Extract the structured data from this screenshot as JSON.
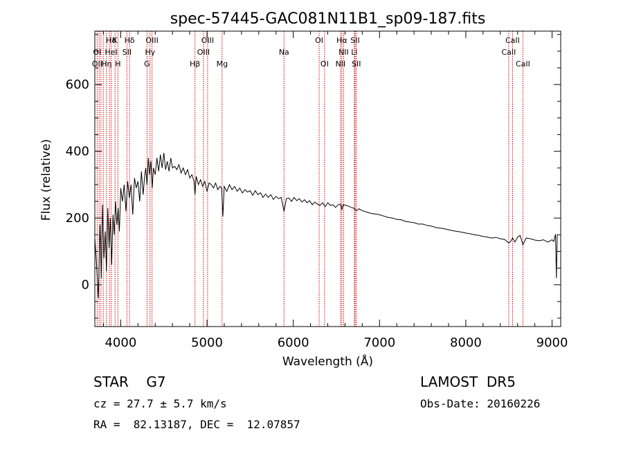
{
  "chart_data": {
    "type": "line",
    "title": "spec-57445-GAC081N11B1_sp09-187.fits",
    "xlabel": "Wavelength (Å)",
    "ylabel": "Flux (relative)",
    "xlim": [
      3700,
      9100
    ],
    "ylim": [
      -125,
      760
    ],
    "xticks": [
      4000,
      5000,
      6000,
      7000,
      8000,
      9000
    ],
    "yticks": [
      0,
      200,
      400,
      600
    ],
    "grid": false,
    "series": [
      {
        "color": "#000000",
        "x": [
          3700,
          3720,
          3740,
          3760,
          3775,
          3790,
          3805,
          3820,
          3835,
          3850,
          3865,
          3880,
          3895,
          3910,
          3925,
          3940,
          3955,
          3970,
          3985,
          4000,
          4020,
          4040,
          4060,
          4080,
          4100,
          4120,
          4140,
          4160,
          4180,
          4200,
          4220,
          4240,
          4260,
          4275,
          4290,
          4305,
          4320,
          4335,
          4350,
          4365,
          4380,
          4400,
          4420,
          4440,
          4460,
          4480,
          4500,
          4520,
          4540,
          4560,
          4580,
          4600,
          4625,
          4650,
          4675,
          4700,
          4725,
          4750,
          4775,
          4800,
          4825,
          4850,
          4861,
          4875,
          4900,
          4925,
          4950,
          4975,
          5000,
          5025,
          5050,
          5075,
          5100,
          5125,
          5150,
          5170,
          5184,
          5200,
          5230,
          5260,
          5290,
          5320,
          5350,
          5380,
          5410,
          5440,
          5470,
          5500,
          5530,
          5560,
          5590,
          5620,
          5650,
          5680,
          5710,
          5740,
          5770,
          5800,
          5830,
          5860,
          5893,
          5920,
          5950,
          5980,
          6010,
          6040,
          6070,
          6100,
          6130,
          6160,
          6190,
          6220,
          6250,
          6280,
          6310,
          6340,
          6370,
          6400,
          6430,
          6460,
          6490,
          6520,
          6550,
          6563,
          6580,
          6610,
          6640,
          6670,
          6700,
          6730,
          6760,
          6800,
          6850,
          6900,
          6950,
          7000,
          7050,
          7100,
          7150,
          7200,
          7250,
          7300,
          7350,
          7400,
          7450,
          7500,
          7550,
          7600,
          7650,
          7700,
          7750,
          7800,
          7850,
          7900,
          7950,
          8000,
          8050,
          8100,
          8150,
          8200,
          8250,
          8300,
          8350,
          8400,
          8450,
          8498,
          8520,
          8542,
          8570,
          8600,
          8630,
          8662,
          8700,
          8750,
          8800,
          8850,
          8900,
          8950,
          9000,
          9020,
          9040,
          9050,
          9060
        ],
        "values": [
          140,
          60,
          -40,
          180,
          20,
          240,
          80,
          160,
          40,
          230,
          110,
          200,
          60,
          210,
          150,
          250,
          180,
          230,
          160,
          290,
          250,
          300,
          220,
          310,
          260,
          300,
          210,
          320,
          290,
          310,
          250,
          340,
          270,
          320,
          350,
          300,
          380,
          330,
          370,
          290,
          350,
          330,
          380,
          340,
          390,
          350,
          395,
          345,
          370,
          340,
          380,
          350,
          355,
          345,
          360,
          335,
          350,
          330,
          345,
          320,
          330,
          310,
          270,
          325,
          300,
          315,
          295,
          310,
          280,
          305,
          300,
          290,
          305,
          285,
          295,
          290,
          205,
          295,
          280,
          300,
          285,
          295,
          280,
          290,
          275,
          285,
          278,
          282,
          268,
          282,
          270,
          276,
          262,
          272,
          262,
          270,
          256,
          265,
          258,
          262,
          220,
          258,
          260,
          250,
          262,
          252,
          258,
          248,
          255,
          246,
          252,
          240,
          248,
          242,
          238,
          246,
          234,
          246,
          238,
          240,
          232,
          240,
          242,
          225,
          240,
          238,
          236,
          232,
          230,
          222,
          228,
          222,
          218,
          214,
          212,
          210,
          206,
          202,
          200,
          196,
          195,
          190,
          188,
          186,
          182,
          182,
          178,
          176,
          172,
          170,
          168,
          165,
          162,
          160,
          158,
          155,
          153,
          150,
          148,
          145,
          143,
          140,
          142,
          138,
          136,
          125,
          130,
          140,
          128,
          143,
          148,
          120,
          140,
          138,
          134,
          132,
          135,
          128,
          135,
          130,
          152,
          20,
          150
        ]
      }
    ],
    "line_labels": [
      {
        "text": "Hδ",
        "wl": 3889,
        "row": 0
      },
      {
        "text": "K",
        "wl": 3934,
        "row": 0
      },
      {
        "text": "Hδ",
        "wl": 4102,
        "row": 0
      },
      {
        "text": "OIII",
        "wl": 4363,
        "row": 0
      },
      {
        "text": "OIII",
        "wl": 5007,
        "row": 0
      },
      {
        "text": "OI",
        "wl": 6300,
        "row": 0
      },
      {
        "text": "Hα",
        "wl": 6563,
        "row": 0
      },
      {
        "text": "SII",
        "wl": 6717,
        "row": 0
      },
      {
        "text": "CaII",
        "wl": 8542,
        "row": 0
      },
      {
        "text": "OI",
        "wl": 3727,
        "row": 1
      },
      {
        "text": "HeI",
        "wl": 3889,
        "row": 1
      },
      {
        "text": "SII",
        "wl": 4072,
        "row": 1
      },
      {
        "text": "Hγ",
        "wl": 4340,
        "row": 1
      },
      {
        "text": "OIII",
        "wl": 4959,
        "row": 1
      },
      {
        "text": "Na",
        "wl": 5893,
        "row": 1
      },
      {
        "text": "NII",
        "wl": 6584,
        "row": 1
      },
      {
        "text": "Li",
        "wl": 6708,
        "row": 1
      },
      {
        "text": "CaII",
        "wl": 8498,
        "row": 1
      },
      {
        "text": "OII",
        "wl": 3727,
        "row": 2
      },
      {
        "text": "Hη",
        "wl": 3835,
        "row": 2
      },
      {
        "text": "H",
        "wl": 3968,
        "row": 2
      },
      {
        "text": "G",
        "wl": 4305,
        "row": 2
      },
      {
        "text": "Hβ",
        "wl": 4861,
        "row": 2
      },
      {
        "text": "Mg",
        "wl": 5175,
        "row": 2
      },
      {
        "text": "OI",
        "wl": 6363,
        "row": 2
      },
      {
        "text": "NII",
        "wl": 6548,
        "row": 2
      },
      {
        "text": "SII",
        "wl": 6731,
        "row": 2
      },
      {
        "text": "CaII",
        "wl": 8662,
        "row": 2
      }
    ],
    "line_markers_wl": [
      3727,
      3750,
      3771,
      3798,
      3835,
      3869,
      3889,
      3934,
      3968,
      4072,
      4102,
      4305,
      4340,
      4363,
      4861,
      4959,
      5007,
      5175,
      5893,
      6300,
      6363,
      6548,
      6563,
      6584,
      6708,
      6717,
      6731,
      8498,
      8542,
      8662
    ],
    "line_marker_color": "#cc0000"
  },
  "info": {
    "class_text": "STAR    G7",
    "survey": "LAMOST  DR5",
    "velocity": "cz = 27.7 ± 5.7 km/s",
    "obs_date": "Obs-Date: 20160226",
    "coords": "RA =  82.13187, DEC =  12.07857"
  }
}
